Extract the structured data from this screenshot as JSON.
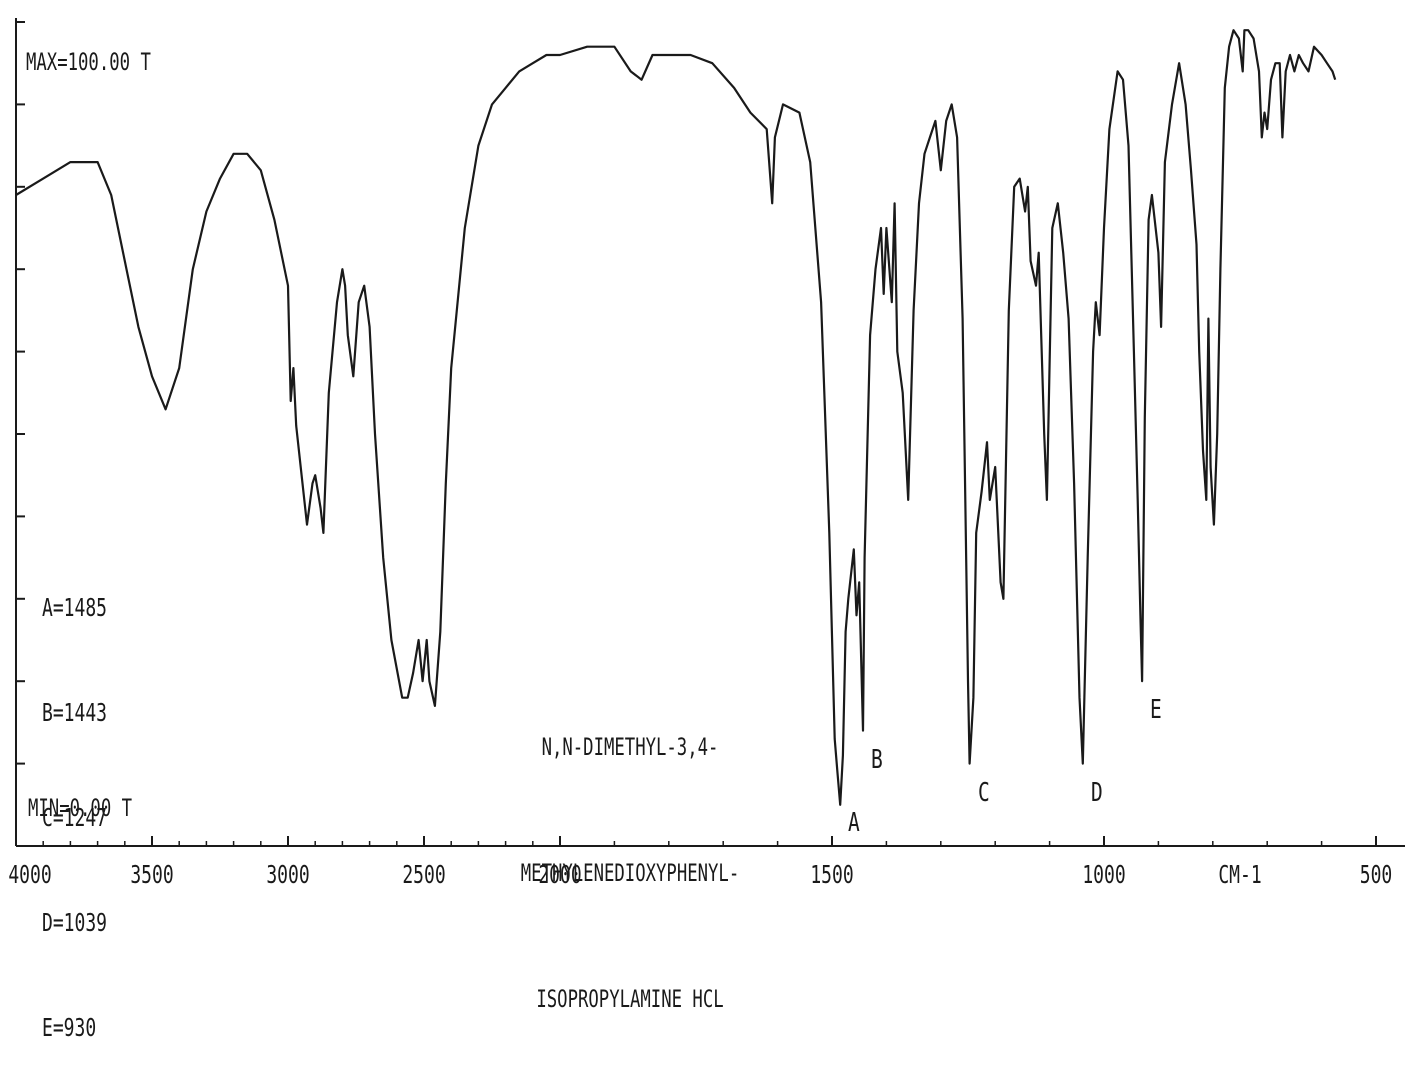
{
  "header": {
    "max_label": "MAX=100.00 T",
    "min_label": "MIN=0.00 T"
  },
  "peak_list": [
    "A=1485",
    "B=1443",
    "C=1247",
    "D=1039",
    "E=930"
  ],
  "compound_name": [
    "N,N-DIMETHYL-3,4-",
    "METHYLENEDIOXYPHENYL-",
    "ISOPROPYLAMINE HCL"
  ],
  "x_axis": {
    "unit_label": "CM-1",
    "tick_labels": [
      "4000",
      "3500",
      "3000",
      "2500",
      "2000",
      "1500",
      "1000",
      "500"
    ]
  },
  "peak_markers": [
    {
      "letter": "A",
      "wavenumber": 1485
    },
    {
      "letter": "B",
      "wavenumber": 1443
    },
    {
      "letter": "C",
      "wavenumber": 1247
    },
    {
      "letter": "D",
      "wavenumber": 1039
    },
    {
      "letter": "E",
      "wavenumber": 930
    }
  ],
  "chart_data": {
    "type": "line",
    "title": "",
    "xlabel": "CM-1",
    "ylabel": "",
    "x_reversed": true,
    "x_scale": "piecewise-linear (2x scale below 2000 cm-1)",
    "xlim": [
      4000,
      450
    ],
    "ylim": [
      0,
      100
    ],
    "y_unit": "%T",
    "color": "#1a1a1a",
    "series": [
      {
        "values": [
          [
            4000,
            79
          ],
          [
            3900,
            81
          ],
          [
            3800,
            83
          ],
          [
            3700,
            83
          ],
          [
            3650,
            79
          ],
          [
            3600,
            71
          ],
          [
            3550,
            63
          ],
          [
            3500,
            57
          ],
          [
            3450,
            53
          ],
          [
            3400,
            58
          ],
          [
            3350,
            70
          ],
          [
            3300,
            77
          ],
          [
            3250,
            81
          ],
          [
            3200,
            84
          ],
          [
            3150,
            84
          ],
          [
            3100,
            82
          ],
          [
            3050,
            76
          ],
          [
            3000,
            68
          ],
          [
            2990,
            54
          ],
          [
            2980,
            58
          ],
          [
            2970,
            51
          ],
          [
            2950,
            45
          ],
          [
            2930,
            39
          ],
          [
            2910,
            44
          ],
          [
            2900,
            45
          ],
          [
            2880,
            41
          ],
          [
            2870,
            38
          ],
          [
            2850,
            55
          ],
          [
            2820,
            66
          ],
          [
            2800,
            70
          ],
          [
            2790,
            68
          ],
          [
            2780,
            62
          ],
          [
            2760,
            57
          ],
          [
            2740,
            66
          ],
          [
            2720,
            68
          ],
          [
            2700,
            63
          ],
          [
            2680,
            50
          ],
          [
            2650,
            35
          ],
          [
            2620,
            25
          ],
          [
            2580,
            18
          ],
          [
            2560,
            18
          ],
          [
            2540,
            21
          ],
          [
            2520,
            25
          ],
          [
            2505,
            20
          ],
          [
            2490,
            25
          ],
          [
            2480,
            20
          ],
          [
            2460,
            17
          ],
          [
            2440,
            26
          ],
          [
            2420,
            44
          ],
          [
            2400,
            58
          ],
          [
            2350,
            75
          ],
          [
            2300,
            85
          ],
          [
            2250,
            90
          ],
          [
            2200,
            92
          ],
          [
            2150,
            94
          ],
          [
            2100,
            95
          ],
          [
            2050,
            96
          ],
          [
            2000,
            96
          ],
          [
            1950,
            97
          ],
          [
            1900,
            97
          ],
          [
            1870,
            94
          ],
          [
            1850,
            93
          ],
          [
            1830,
            96
          ],
          [
            1800,
            96
          ],
          [
            1760,
            96
          ],
          [
            1720,
            95
          ],
          [
            1680,
            92
          ],
          [
            1650,
            89
          ],
          [
            1620,
            87
          ],
          [
            1610,
            78
          ],
          [
            1605,
            86
          ],
          [
            1590,
            90
          ],
          [
            1560,
            89
          ],
          [
            1540,
            83
          ],
          [
            1520,
            66
          ],
          [
            1505,
            38
          ],
          [
            1495,
            13
          ],
          [
            1490,
            9
          ],
          [
            1485,
            5
          ],
          [
            1480,
            11
          ],
          [
            1475,
            26
          ],
          [
            1470,
            30
          ],
          [
            1460,
            36
          ],
          [
            1455,
            28
          ],
          [
            1450,
            32
          ],
          [
            1443,
            14
          ],
          [
            1440,
            35
          ],
          [
            1430,
            62
          ],
          [
            1420,
            70
          ],
          [
            1410,
            75
          ],
          [
            1405,
            67
          ],
          [
            1400,
            75
          ],
          [
            1390,
            66
          ],
          [
            1385,
            78
          ],
          [
            1380,
            60
          ],
          [
            1370,
            55
          ],
          [
            1360,
            42
          ],
          [
            1350,
            65
          ],
          [
            1340,
            78
          ],
          [
            1330,
            84
          ],
          [
            1320,
            86
          ],
          [
            1310,
            88
          ],
          [
            1300,
            82
          ],
          [
            1290,
            88
          ],
          [
            1280,
            90
          ],
          [
            1270,
            86
          ],
          [
            1260,
            64
          ],
          [
            1250,
            20
          ],
          [
            1247,
            10
          ],
          [
            1240,
            18
          ],
          [
            1235,
            38
          ],
          [
            1225,
            43
          ],
          [
            1215,
            49
          ],
          [
            1210,
            42
          ],
          [
            1200,
            46
          ],
          [
            1190,
            32
          ],
          [
            1185,
            30
          ],
          [
            1175,
            65
          ],
          [
            1165,
            80
          ],
          [
            1155,
            81
          ],
          [
            1145,
            77
          ],
          [
            1140,
            80
          ],
          [
            1135,
            71
          ],
          [
            1125,
            68
          ],
          [
            1120,
            72
          ],
          [
            1110,
            50
          ],
          [
            1105,
            42
          ],
          [
            1095,
            75
          ],
          [
            1085,
            78
          ],
          [
            1080,
            75
          ],
          [
            1075,
            72
          ],
          [
            1065,
            64
          ],
          [
            1055,
            44
          ],
          [
            1045,
            18
          ],
          [
            1039,
            10
          ],
          [
            1030,
            35
          ],
          [
            1020,
            60
          ],
          [
            1015,
            66
          ],
          [
            1008,
            62
          ],
          [
            1000,
            75
          ],
          [
            990,
            87
          ],
          [
            975,
            94
          ],
          [
            965,
            93
          ],
          [
            955,
            85
          ],
          [
            945,
            60
          ],
          [
            938,
            42
          ],
          [
            933,
            28
          ],
          [
            930,
            20
          ],
          [
            925,
            52
          ],
          [
            918,
            76
          ],
          [
            912,
            79
          ],
          [
            900,
            72
          ],
          [
            895,
            63
          ],
          [
            888,
            83
          ],
          [
            875,
            90
          ],
          [
            862,
            95
          ],
          [
            850,
            90
          ],
          [
            840,
            82
          ],
          [
            830,
            73
          ],
          [
            825,
            60
          ],
          [
            818,
            48
          ],
          [
            812,
            42
          ],
          [
            808,
            64
          ],
          [
            804,
            46
          ],
          [
            798,
            39
          ],
          [
            792,
            50
          ],
          [
            786,
            70
          ],
          [
            778,
            92
          ],
          [
            770,
            97
          ],
          [
            762,
            99
          ],
          [
            752,
            98
          ],
          [
            745,
            94
          ],
          [
            742,
            99
          ],
          [
            735,
            99
          ],
          [
            725,
            98
          ],
          [
            715,
            94
          ],
          [
            710,
            86
          ],
          [
            705,
            89
          ],
          [
            700,
            87
          ],
          [
            693,
            93
          ],
          [
            685,
            95
          ],
          [
            677,
            95
          ],
          [
            672,
            86
          ],
          [
            666,
            94
          ],
          [
            658,
            96
          ],
          [
            650,
            94
          ],
          [
            642,
            96
          ],
          [
            634,
            95
          ],
          [
            624,
            94
          ],
          [
            614,
            97
          ],
          [
            600,
            96
          ],
          [
            590,
            95
          ],
          [
            580,
            94
          ],
          [
            575,
            93
          ]
        ]
      }
    ]
  }
}
